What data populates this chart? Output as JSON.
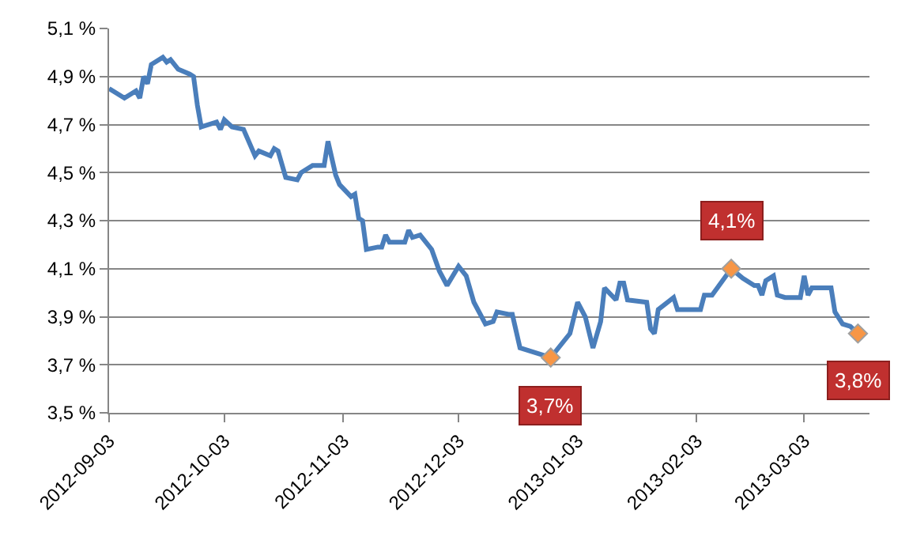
{
  "chart_data": {
    "type": "line",
    "x": [
      "2012-09-03",
      "2012-09-05",
      "2012-09-07",
      "2012-09-10",
      "2012-09-11",
      "2012-09-12",
      "2012-09-13",
      "2012-09-14",
      "2012-09-17",
      "2012-09-18",
      "2012-09-19",
      "2012-09-21",
      "2012-09-24",
      "2012-09-25",
      "2012-09-26",
      "2012-09-27",
      "2012-10-01",
      "2012-10-02",
      "2012-10-03",
      "2012-10-05",
      "2012-10-08",
      "2012-10-11",
      "2012-10-12",
      "2012-10-15",
      "2012-10-16",
      "2012-10-17",
      "2012-10-19",
      "2012-10-22",
      "2012-10-23",
      "2012-10-26",
      "2012-10-29",
      "2012-10-30",
      "2012-11-01",
      "2012-11-02",
      "2012-11-05",
      "2012-11-06",
      "2012-11-07",
      "2012-11-08",
      "2012-11-09",
      "2012-11-12",
      "2012-11-13",
      "2012-11-14",
      "2012-11-15",
      "2012-11-19",
      "2012-11-20",
      "2012-11-21",
      "2012-11-23",
      "2012-11-26",
      "2012-11-28",
      "2012-11-30",
      "2012-12-03",
      "2012-12-05",
      "2012-12-07",
      "2012-12-10",
      "2012-12-12",
      "2012-12-13",
      "2012-12-16",
      "2012-12-17",
      "2012-12-19",
      "2012-12-27",
      "2013-01-01",
      "2013-01-03",
      "2013-01-05",
      "2013-01-07",
      "2013-01-09",
      "2013-01-10",
      "2013-01-13",
      "2013-01-14",
      "2013-01-15",
      "2013-01-16",
      "2013-01-21",
      "2013-01-22",
      "2013-01-23",
      "2013-01-24",
      "2013-01-28",
      "2013-01-29",
      "2013-02-04",
      "2013-02-05",
      "2013-02-07",
      "2013-02-12",
      "2013-02-15",
      "2013-02-18",
      "2013-02-19",
      "2013-02-20",
      "2013-02-21",
      "2013-02-23",
      "2013-02-24",
      "2013-02-26",
      "2013-03-02",
      "2013-03-03",
      "2013-03-04",
      "2013-03-05",
      "2013-03-10",
      "2013-03-11",
      "2013-03-13",
      "2013-03-15",
      "2013-03-17"
    ],
    "series": [
      {
        "color": "#4a7ebb",
        "values": [
          4.85,
          4.83,
          4.81,
          4.84,
          4.81,
          4.9,
          4.87,
          4.95,
          4.98,
          4.96,
          4.97,
          4.93,
          4.91,
          4.9,
          4.78,
          4.69,
          4.71,
          4.68,
          4.72,
          4.69,
          4.68,
          4.57,
          4.59,
          4.57,
          4.6,
          4.59,
          4.48,
          4.47,
          4.5,
          4.53,
          4.53,
          4.63,
          4.49,
          4.45,
          4.4,
          4.41,
          4.31,
          4.3,
          4.18,
          4.19,
          4.19,
          4.24,
          4.21,
          4.21,
          4.26,
          4.23,
          4.24,
          4.18,
          4.09,
          4.03,
          4.11,
          4.07,
          3.96,
          3.87,
          3.88,
          3.92,
          3.91,
          3.91,
          3.77,
          3.73,
          3.83,
          3.96,
          3.9,
          3.77,
          3.88,
          4.02,
          3.97,
          4.04,
          4.04,
          3.97,
          3.96,
          3.85,
          3.83,
          3.93,
          3.98,
          3.93,
          3.93,
          3.99,
          3.99,
          4.1,
          4.06,
          4.03,
          4.03,
          3.99,
          4.05,
          4.07,
          3.99,
          3.98,
          3.98,
          4.07,
          3.99,
          4.02,
          4.02,
          3.92,
          3.87,
          3.86,
          3.83
        ]
      },
      {
        "type": "scatter",
        "color": "#f79646",
        "marker": "diamond",
        "x": [
          "2012-12-27",
          "2013-02-12",
          "2013-03-17"
        ],
        "values": [
          3.73,
          4.1,
          3.83
        ]
      }
    ],
    "annotations": [
      {
        "text": "3,7%",
        "x": "2012-12-27",
        "y": 3.73
      },
      {
        "text": "4,1%",
        "x": "2013-02-12",
        "y": 4.1
      },
      {
        "text": "3,8%",
        "x": "2013-03-17",
        "y": 3.83
      }
    ],
    "xlim": [
      "2012-09-03",
      "2013-03-20"
    ],
    "xticks": [
      "2012-09-03",
      "2012-10-03",
      "2012-11-03",
      "2012-12-03",
      "2013-01-03",
      "2013-02-03",
      "2013-03-03"
    ],
    "ylim": [
      3.5,
      5.1
    ],
    "yticks": [
      {
        "value": 3.5,
        "label": "3,5 %"
      },
      {
        "value": 3.7,
        "label": "3,7 %"
      },
      {
        "value": 3.9,
        "label": "3,9 %"
      },
      {
        "value": 4.1,
        "label": "4,1 %"
      },
      {
        "value": 4.3,
        "label": "4,3 %"
      },
      {
        "value": 4.5,
        "label": "4,5 %"
      },
      {
        "value": 4.7,
        "label": "4,7 %"
      },
      {
        "value": 4.9,
        "label": "4,9 %"
      },
      {
        "value": 5.1,
        "label": "5,1 %"
      }
    ],
    "grid": "y",
    "line_style": "solid"
  }
}
